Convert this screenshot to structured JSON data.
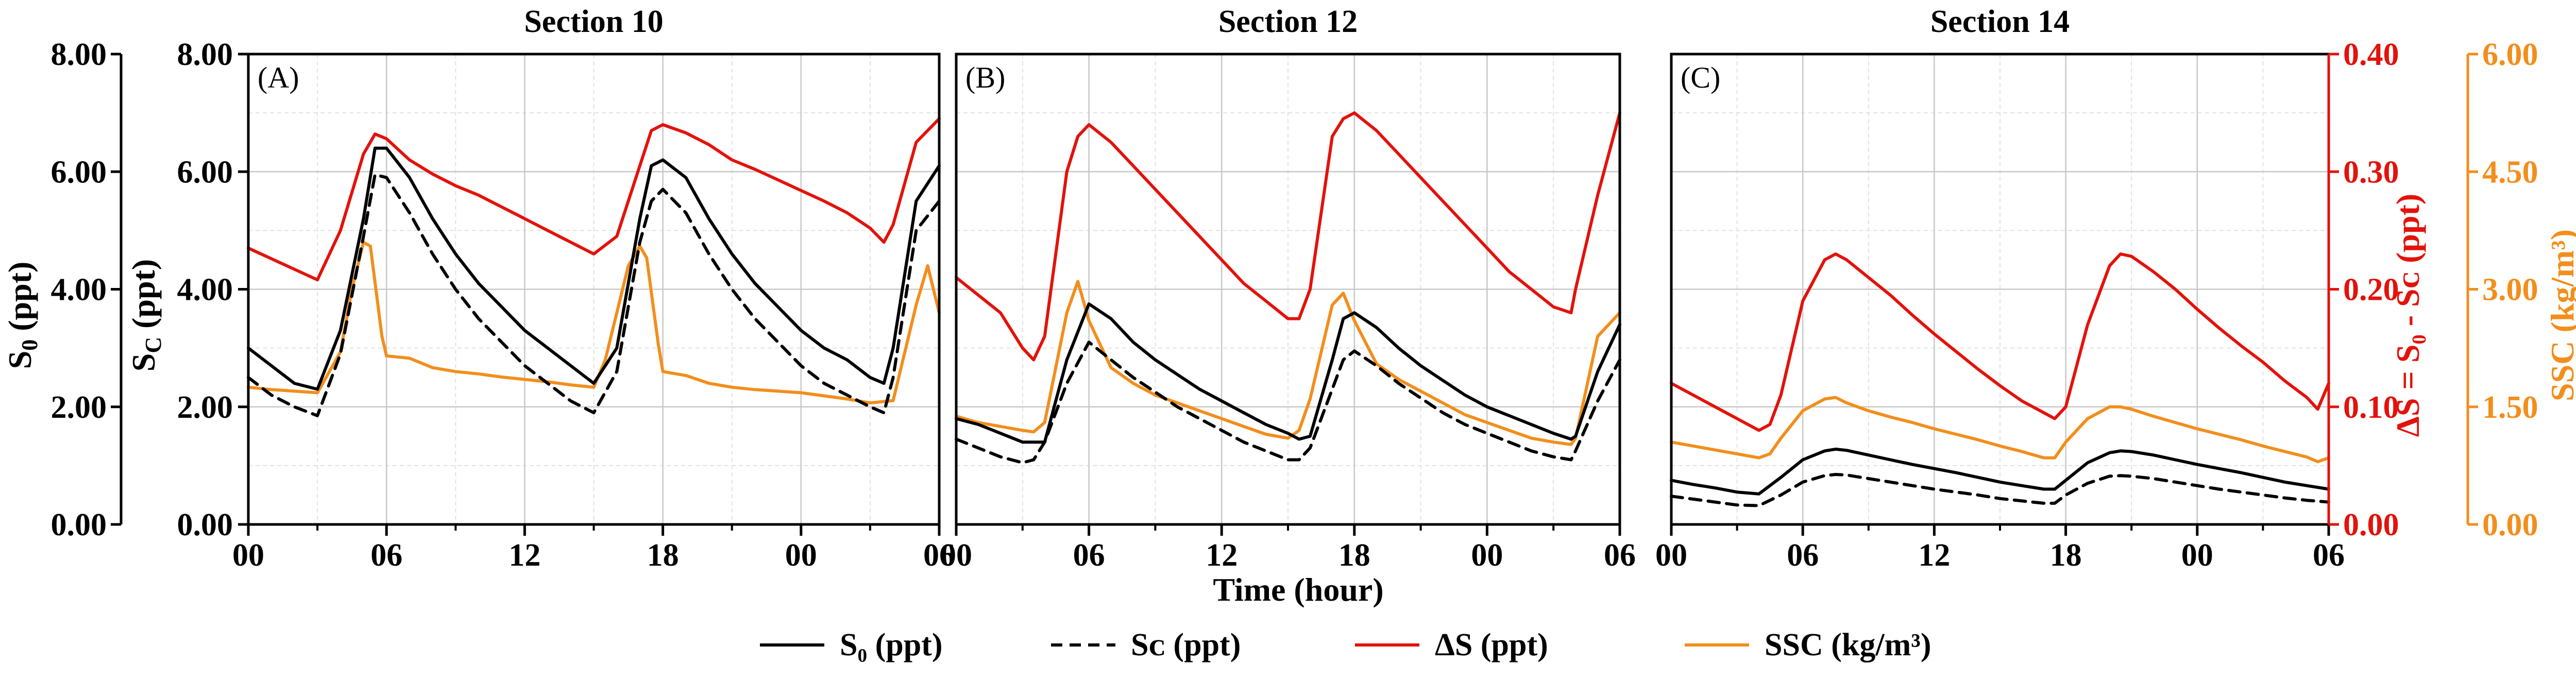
{
  "chart_data": [
    {
      "type": "line",
      "title": "Section 10",
      "panel_label": "(A)",
      "x_ticks": [
        "00",
        "06",
        "12",
        "18",
        "00",
        "06"
      ],
      "xlim_hours": [
        0,
        30
      ],
      "y_left_ticks": [
        "0.00",
        "2.00",
        "4.00",
        "6.00",
        "8.00"
      ],
      "ylim_salinity": [
        0,
        8
      ],
      "series": [
        {
          "name": "S₀ (ppt)",
          "axis": "salinity",
          "x": [
            0,
            1,
            2,
            3,
            4,
            5,
            5.5,
            6,
            7,
            8,
            9,
            10,
            11,
            12,
            13,
            14,
            15,
            16,
            17,
            17.5,
            18,
            19,
            20,
            21,
            22,
            23,
            24,
            25,
            26,
            27,
            27.6,
            28,
            29,
            30
          ],
          "y": [
            3.0,
            2.7,
            2.4,
            2.3,
            3.3,
            5.2,
            6.4,
            6.4,
            5.9,
            5.2,
            4.6,
            4.1,
            3.7,
            3.3,
            3.0,
            2.7,
            2.4,
            3.0,
            5.2,
            6.1,
            6.2,
            5.9,
            5.2,
            4.6,
            4.1,
            3.7,
            3.3,
            3.0,
            2.8,
            2.5,
            2.4,
            3.0,
            5.5,
            6.1
          ]
        },
        {
          "name": "Sᴄ (ppt)",
          "axis": "salinity",
          "x": [
            0,
            1,
            2,
            3,
            4,
            5,
            5.5,
            6,
            7,
            8,
            9,
            10,
            11,
            12,
            13,
            14,
            15,
            16,
            17,
            17.5,
            18,
            19,
            20,
            21,
            22,
            23,
            24,
            25,
            26,
            27,
            27.6,
            28,
            29,
            30
          ],
          "y": [
            2.5,
            2.2,
            2.0,
            1.85,
            2.9,
            4.9,
            5.95,
            5.9,
            5.3,
            4.6,
            4.0,
            3.5,
            3.1,
            2.7,
            2.4,
            2.1,
            1.9,
            2.6,
            4.8,
            5.5,
            5.7,
            5.3,
            4.6,
            4.0,
            3.5,
            3.1,
            2.7,
            2.4,
            2.2,
            2.0,
            1.9,
            2.5,
            5.0,
            5.5
          ]
        },
        {
          "name": "ΔS (ppt)",
          "axis": "delta_s",
          "x": [
            0,
            1,
            2,
            3,
            4,
            5,
            5.5,
            6,
            7,
            8,
            9,
            10,
            11,
            12,
            13,
            14,
            15,
            16,
            17,
            17.5,
            18,
            19,
            20,
            21,
            22,
            23,
            24,
            25,
            26,
            27,
            27.6,
            28,
            29,
            30
          ],
          "y": [
            0.235,
            0.226,
            0.217,
            0.208,
            0.25,
            0.315,
            0.332,
            0.328,
            0.31,
            0.298,
            0.288,
            0.28,
            0.27,
            0.26,
            0.25,
            0.24,
            0.23,
            0.245,
            0.305,
            0.335,
            0.34,
            0.333,
            0.323,
            0.31,
            0.302,
            0.293,
            0.284,
            0.275,
            0.265,
            0.252,
            0.24,
            0.255,
            0.325,
            0.345
          ]
        },
        {
          "name": "SSC (kg/m³)",
          "axis": "ssc",
          "x": [
            0,
            1,
            2,
            3,
            4,
            4.5,
            5,
            5.3,
            5.8,
            6,
            7,
            8,
            9,
            10,
            11,
            12,
            13,
            14,
            15,
            15.5,
            16,
            16.5,
            17,
            17.3,
            17.8,
            18,
            19,
            20,
            21,
            22,
            23,
            24,
            25,
            26,
            27,
            28,
            29,
            29.5,
            30
          ],
          "y": [
            1.75,
            1.72,
            1.7,
            1.68,
            2.2,
            3.0,
            3.6,
            3.55,
            2.4,
            2.15,
            2.12,
            2.0,
            1.95,
            1.92,
            1.88,
            1.85,
            1.82,
            1.78,
            1.75,
            2.1,
            2.7,
            3.3,
            3.55,
            3.4,
            2.3,
            1.95,
            1.9,
            1.8,
            1.75,
            1.72,
            1.7,
            1.68,
            1.64,
            1.6,
            1.55,
            1.58,
            2.8,
            3.3,
            2.7
          ]
        }
      ]
    },
    {
      "type": "line",
      "title": "Section 12",
      "panel_label": "(B)",
      "x_ticks": [
        "00",
        "06",
        "12",
        "18",
        "00",
        "06"
      ],
      "xlim_hours": [
        0,
        30
      ],
      "series": [
        {
          "name": "S₀ (ppt)",
          "axis": "salinity",
          "x": [
            0,
            1,
            2,
            3,
            4,
            5,
            6,
            7,
            8,
            9,
            10,
            11,
            12,
            13,
            14,
            15,
            15.5,
            16,
            17,
            17.5,
            18,
            19,
            20,
            21,
            22,
            23,
            24,
            25,
            26,
            27,
            27.8,
            28,
            29,
            30
          ],
          "y": [
            1.8,
            1.7,
            1.55,
            1.4,
            1.4,
            2.8,
            3.75,
            3.5,
            3.1,
            2.8,
            2.55,
            2.3,
            2.1,
            1.9,
            1.7,
            1.55,
            1.45,
            1.5,
            2.8,
            3.5,
            3.6,
            3.35,
            3.0,
            2.7,
            2.45,
            2.2,
            2.0,
            1.85,
            1.7,
            1.55,
            1.45,
            1.5,
            2.6,
            3.4
          ]
        },
        {
          "name": "Sᴄ (ppt)",
          "axis": "salinity",
          "x": [
            0,
            1,
            2,
            3,
            3.5,
            4,
            5,
            6,
            7,
            8,
            9,
            10,
            11,
            12,
            13,
            14,
            15,
            15.5,
            16,
            17,
            17.5,
            18,
            19,
            20,
            21,
            22,
            23,
            24,
            25,
            26,
            27,
            27.8,
            28,
            29,
            30
          ],
          "y": [
            1.45,
            1.3,
            1.15,
            1.05,
            1.1,
            1.4,
            2.4,
            3.1,
            2.8,
            2.5,
            2.25,
            2.0,
            1.8,
            1.6,
            1.4,
            1.25,
            1.1,
            1.1,
            1.3,
            2.3,
            2.8,
            2.95,
            2.7,
            2.4,
            2.15,
            1.9,
            1.7,
            1.55,
            1.4,
            1.25,
            1.15,
            1.1,
            1.25,
            2.1,
            2.8
          ]
        },
        {
          "name": "ΔS (ppt)",
          "axis": "delta_s",
          "x": [
            0,
            1,
            2,
            3,
            3.5,
            4,
            5,
            5.5,
            6,
            7,
            8,
            9,
            10,
            11,
            12,
            13,
            14,
            15,
            15.5,
            16,
            17,
            17.5,
            18,
            19,
            20,
            21,
            22,
            23,
            24,
            25,
            26,
            27,
            27.8,
            28,
            29,
            30
          ],
          "y": [
            0.21,
            0.195,
            0.18,
            0.15,
            0.14,
            0.16,
            0.3,
            0.33,
            0.34,
            0.325,
            0.305,
            0.285,
            0.265,
            0.245,
            0.225,
            0.205,
            0.19,
            0.175,
            0.175,
            0.2,
            0.33,
            0.345,
            0.35,
            0.335,
            0.315,
            0.295,
            0.275,
            0.255,
            0.235,
            0.215,
            0.2,
            0.185,
            0.18,
            0.2,
            0.28,
            0.35
          ]
        },
        {
          "name": "SSC (kg/m³)",
          "axis": "ssc",
          "x": [
            0,
            1,
            2,
            3,
            3.5,
            4,
            5,
            5.5,
            6,
            7,
            8,
            9,
            10,
            11,
            12,
            13,
            14,
            15,
            15.5,
            16,
            17,
            17.5,
            18,
            19,
            20,
            21,
            22,
            23,
            24,
            25,
            26,
            27,
            27.8,
            28,
            29,
            30
          ],
          "y": [
            1.38,
            1.3,
            1.25,
            1.2,
            1.18,
            1.3,
            2.7,
            3.1,
            2.6,
            2.0,
            1.8,
            1.65,
            1.55,
            1.45,
            1.35,
            1.25,
            1.15,
            1.1,
            1.2,
            1.6,
            2.8,
            2.95,
            2.6,
            2.05,
            1.85,
            1.7,
            1.55,
            1.4,
            1.3,
            1.2,
            1.1,
            1.05,
            1.02,
            1.1,
            2.4,
            2.7
          ]
        }
      ]
    },
    {
      "type": "line",
      "title": "Section 14",
      "panel_label": "(C)",
      "x_ticks": [
        "00",
        "06",
        "12",
        "18",
        "00",
        "06"
      ],
      "xlim_hours": [
        0,
        30
      ],
      "y_right_ticks_delta_s": [
        "0.00",
        "0.10",
        "0.20",
        "0.30",
        "0.40"
      ],
      "ylim_delta_s": [
        0,
        0.4
      ],
      "y_right_ticks_ssc": [
        "0.00",
        "1.50",
        "3.00",
        "4.50",
        "6.00"
      ],
      "ylim_ssc": [
        0,
        6
      ],
      "series": [
        {
          "name": "S₀ (ppt)",
          "axis": "salinity",
          "x": [
            0,
            1,
            2,
            3,
            4,
            5,
            6,
            7,
            7.5,
            8,
            9,
            10,
            11,
            12,
            13,
            14,
            15,
            16,
            17,
            17.5,
            18,
            19,
            20,
            20.5,
            21,
            22,
            23,
            24,
            25,
            26,
            27,
            28,
            29,
            30
          ],
          "y": [
            0.75,
            0.68,
            0.62,
            0.55,
            0.52,
            0.8,
            1.1,
            1.25,
            1.28,
            1.26,
            1.18,
            1.1,
            1.02,
            0.95,
            0.88,
            0.8,
            0.72,
            0.66,
            0.6,
            0.6,
            0.75,
            1.05,
            1.22,
            1.25,
            1.24,
            1.18,
            1.1,
            1.02,
            0.95,
            0.88,
            0.8,
            0.72,
            0.66,
            0.6
          ]
        },
        {
          "name": "Sᴄ (ppt)",
          "axis": "salinity",
          "x": [
            0,
            1,
            2,
            3,
            4,
            5,
            6,
            7,
            7.5,
            8,
            9,
            10,
            11,
            12,
            13,
            14,
            15,
            16,
            17,
            17.5,
            18,
            19,
            20,
            20.5,
            21,
            22,
            23,
            24,
            25,
            26,
            27,
            28,
            29,
            30
          ],
          "y": [
            0.48,
            0.43,
            0.38,
            0.33,
            0.32,
            0.5,
            0.72,
            0.83,
            0.85,
            0.84,
            0.78,
            0.72,
            0.66,
            0.6,
            0.55,
            0.5,
            0.44,
            0.4,
            0.36,
            0.36,
            0.5,
            0.7,
            0.82,
            0.83,
            0.82,
            0.78,
            0.72,
            0.66,
            0.6,
            0.55,
            0.5,
            0.45,
            0.41,
            0.38
          ]
        },
        {
          "name": "ΔS (ppt)",
          "axis": "delta_s",
          "x": [
            0,
            1,
            2,
            3,
            4,
            4.5,
            5,
            6,
            7,
            7.5,
            8,
            9,
            10,
            11,
            12,
            13,
            14,
            15,
            16,
            17,
            17.5,
            18,
            19,
            20,
            20.5,
            21,
            22,
            23,
            24,
            25,
            26,
            27,
            28,
            29,
            29.5,
            30
          ],
          "y": [
            0.12,
            0.11,
            0.1,
            0.09,
            0.08,
            0.085,
            0.11,
            0.19,
            0.225,
            0.23,
            0.225,
            0.21,
            0.195,
            0.178,
            0.162,
            0.147,
            0.132,
            0.118,
            0.105,
            0.095,
            0.09,
            0.1,
            0.17,
            0.22,
            0.23,
            0.228,
            0.215,
            0.2,
            0.183,
            0.167,
            0.152,
            0.138,
            0.122,
            0.108,
            0.098,
            0.12
          ]
        },
        {
          "name": "SSC (kg/m³)",
          "axis": "ssc",
          "x": [
            0,
            1,
            2,
            3,
            4,
            4.5,
            5,
            6,
            7,
            7.5,
            8,
            9,
            10,
            11,
            12,
            13,
            14,
            15,
            16,
            17,
            17.5,
            18,
            19,
            20,
            20.5,
            21,
            22,
            23,
            24,
            25,
            26,
            27,
            28,
            29,
            29.5,
            30
          ],
          "y": [
            1.05,
            1.0,
            0.95,
            0.9,
            0.85,
            0.9,
            1.1,
            1.45,
            1.6,
            1.62,
            1.55,
            1.45,
            1.37,
            1.3,
            1.22,
            1.15,
            1.08,
            1.0,
            0.93,
            0.85,
            0.85,
            1.05,
            1.35,
            1.5,
            1.5,
            1.47,
            1.38,
            1.3,
            1.22,
            1.15,
            1.08,
            1.0,
            0.93,
            0.86,
            0.8,
            0.85
          ]
        }
      ]
    }
  ],
  "axes": {
    "x_title": "Time (hour)",
    "left_outer_title_base": "S",
    "left_outer_title_sub": "0",
    "left_outer_title_rest": " (ppt)",
    "left_inner_title_base": "S",
    "left_inner_title_sub": "C",
    "left_inner_title_rest": " (ppt)",
    "right_red_title": "ΔS = S₀ - Sᴄ (ppt)",
    "right_orange_title": "SSC (kg/m³)"
  },
  "legend": [
    {
      "label": "S₀ (ppt)",
      "style": "solid",
      "color": "#000000"
    },
    {
      "label": "Sᴄ (ppt)",
      "style": "dashed",
      "color": "#000000"
    },
    {
      "label": "ΔS (ppt)",
      "style": "solid",
      "color": "#e3120b"
    },
    {
      "label": "SSC (kg/m³)",
      "style": "solid",
      "color": "#f28e1c"
    }
  ],
  "colors": {
    "s0": "#000000",
    "sc": "#000000",
    "delta_s": "#e3120b",
    "ssc": "#f28e1c",
    "grid_major": "#c8c8c8",
    "grid_minor": "#e2e2e2"
  }
}
